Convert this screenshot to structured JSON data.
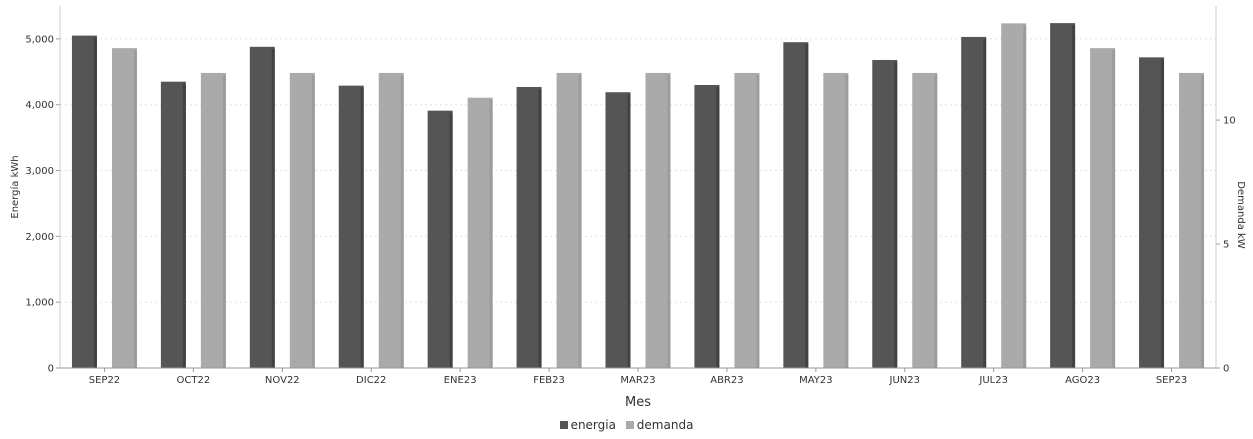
{
  "chart_data": {
    "type": "bar",
    "xlabel": "Mes",
    "ylabel_left": "Energía kWh",
    "ylabel_right": "Demanda kW",
    "categories": [
      "SEP22",
      "OCT22",
      "NOV22",
      "DIC22",
      "ENE23",
      "FEB23",
      "MAR23",
      "ABR23",
      "MAY23",
      "JUN23",
      "JUL23",
      "AGO23",
      "SEP23"
    ],
    "y_left": {
      "lim": [
        0,
        5500
      ],
      "ticks": [
        "0",
        "1,000",
        "2,000",
        "3,000",
        "4,000",
        "5,000"
      ],
      "tick_values": [
        0,
        1000,
        2000,
        3000,
        4000,
        5000
      ]
    },
    "y_right": {
      "lim": [
        0,
        14.6
      ],
      "ticks": [
        "0",
        "5",
        "10"
      ],
      "tick_values": [
        0,
        5,
        10
      ]
    },
    "series": [
      {
        "name": "energia",
        "axis": "left",
        "color": "#555555",
        "values": [
          5050,
          4350,
          4880,
          4290,
          3910,
          4270,
          4190,
          4300,
          4950,
          4680,
          5030,
          5240,
          4720
        ]
      },
      {
        "name": "demanda",
        "axis": "right",
        "color": "#aaaaaa",
        "values": [
          12.9,
          11.9,
          11.9,
          11.9,
          10.9,
          11.9,
          11.9,
          11.9,
          11.9,
          11.9,
          13.9,
          12.9,
          11.9
        ]
      }
    ],
    "grid": true,
    "legend_position": "bottom-center"
  }
}
